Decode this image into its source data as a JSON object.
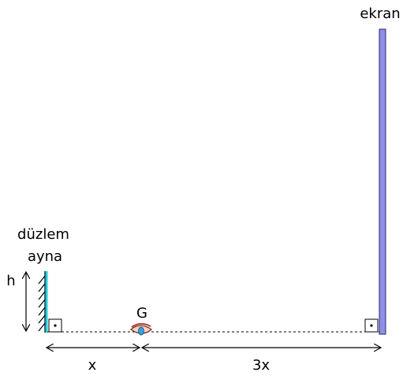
{
  "screen": {
    "label": "ekran"
  },
  "mirror": {
    "label_lines": [
      "düzlem",
      "ayna"
    ],
    "height_label": "h"
  },
  "observer": {
    "label": "G"
  },
  "distances": [
    "x",
    "3x"
  ]
}
